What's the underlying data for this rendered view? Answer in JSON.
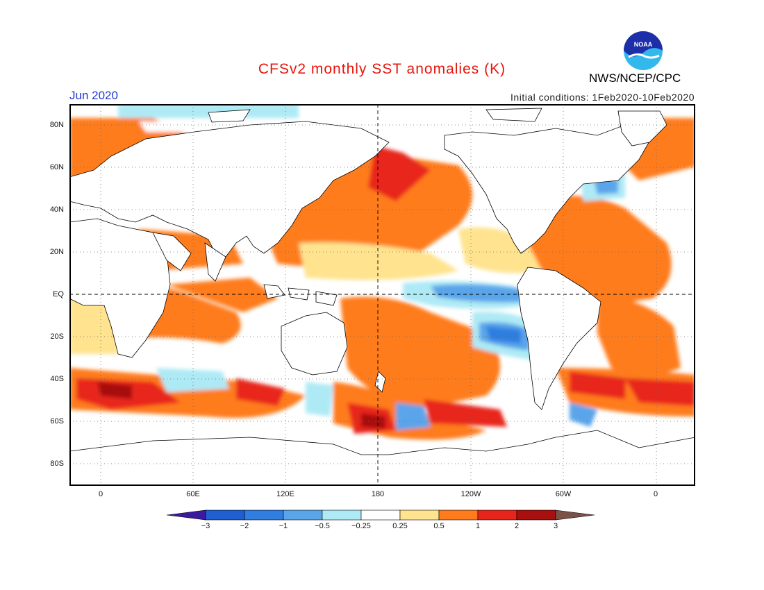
{
  "header": {
    "title": "CFSv2 monthly SST anomalies (K)",
    "agency": "NWS/NCEP/CPC",
    "logo_text": "NOAA",
    "forecast_month": "Jun 2020",
    "initial_conditions": "Initial conditions: 1Feb2020-10Feb2020"
  },
  "map": {
    "lat_labels": [
      "80N",
      "60N",
      "40N",
      "20N",
      "EQ",
      "20S",
      "40S",
      "60S",
      "80S"
    ],
    "lon_labels": [
      "0",
      "60E",
      "120E",
      "180",
      "120W",
      "60W",
      "0"
    ],
    "land_color": "#ffffff",
    "ocean_base_color": "#ffffff"
  },
  "colorbar": {
    "tick_labels": [
      "-3",
      "-2",
      "-1",
      "-0.5",
      "-0.25",
      "0.25",
      "0.5",
      "1",
      "2",
      "3"
    ],
    "colors": [
      "#3c1aa0",
      "#1f5fd1",
      "#2f7ee0",
      "#5aa5ea",
      "#aeeaf5",
      "#ffffff",
      "#ffe38e",
      "#ff7b1c",
      "#e8251c",
      "#a80f0f",
      "#7a5248"
    ]
  }
}
